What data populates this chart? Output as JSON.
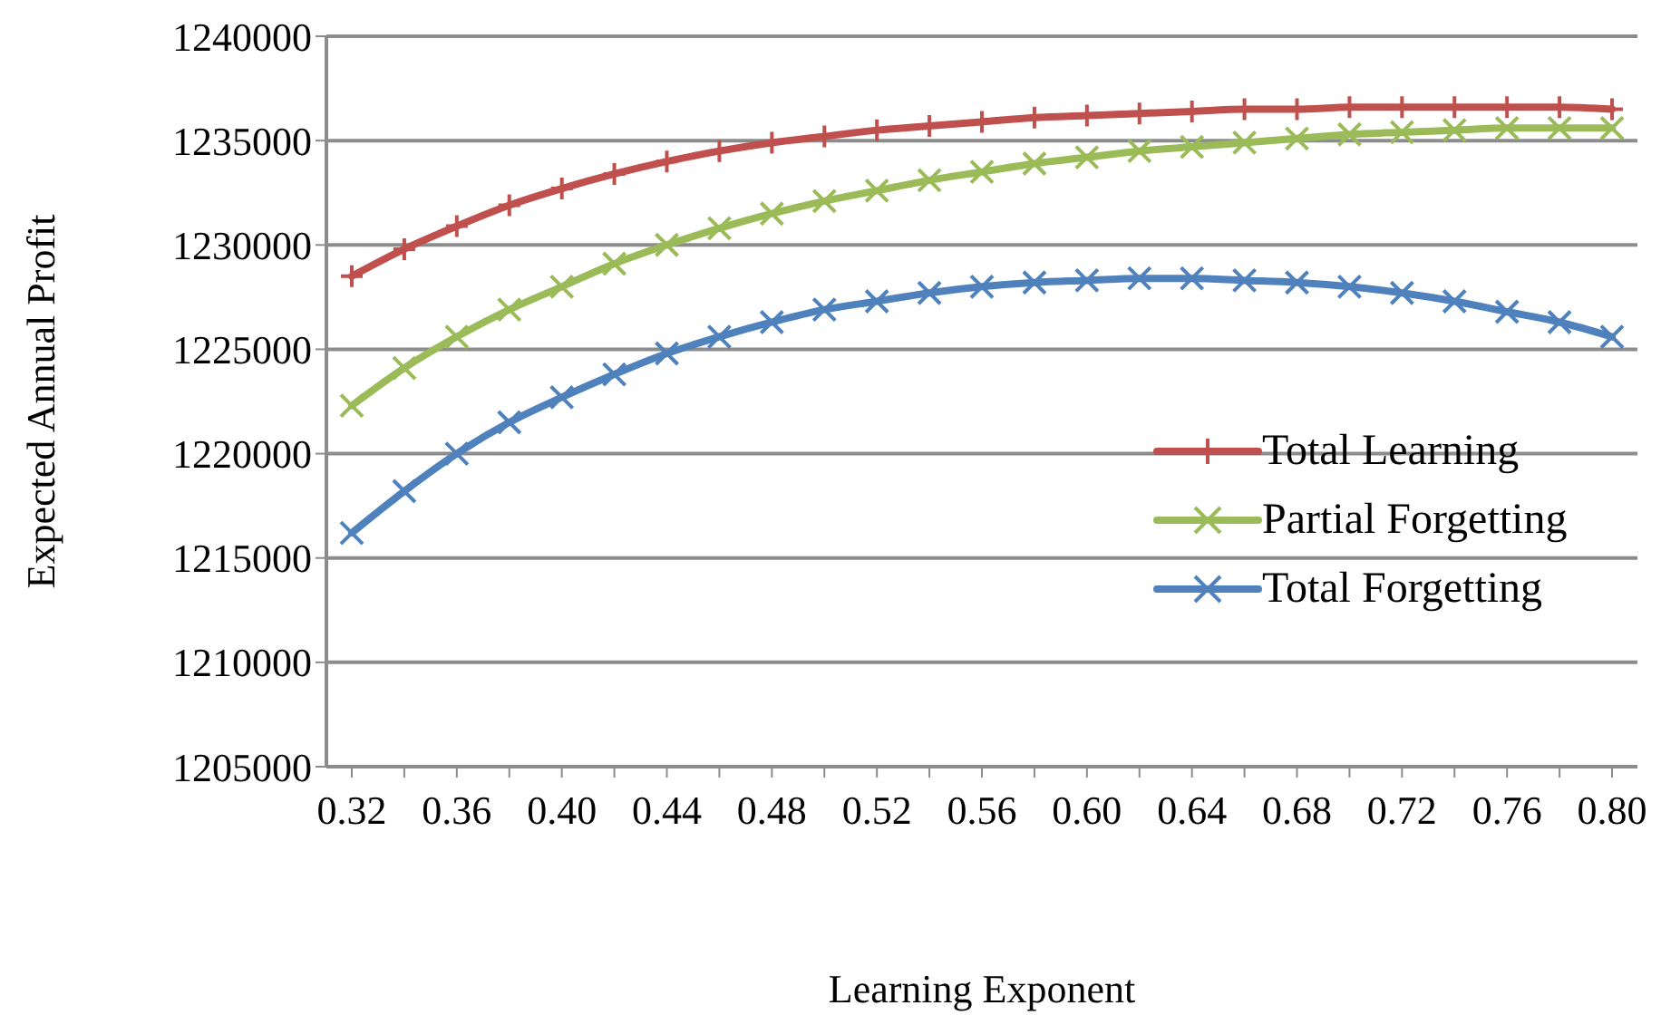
{
  "chart_data": {
    "type": "line",
    "xlabel": "Learning Exponent",
    "ylabel": "Expected Annual Profit",
    "categories": [
      "0.32",
      null,
      "0.36",
      null,
      "0.40",
      null,
      "0.44",
      null,
      "0.48",
      null,
      "0.52",
      null,
      "0.56",
      null,
      "0.60",
      null,
      "0.64",
      null,
      "0.68",
      null,
      "0.72",
      null,
      "0.76",
      null,
      "0.80"
    ],
    "series": [
      {
        "name": "Total Learning",
        "color": "#c0504d",
        "marker": "plus",
        "values": [
          1228500,
          1229800,
          1230900,
          1231900,
          1232700,
          1233400,
          1234000,
          1234500,
          1234900,
          1235200,
          1235500,
          1235700,
          1235900,
          1236100,
          1236200,
          1236300,
          1236400,
          1236500,
          1236500,
          1236600,
          1236600,
          1236600,
          1236600,
          1236600,
          1236500
        ]
      },
      {
        "name": "Partial Forgetting",
        "color": "#9bbb59",
        "marker": "cross",
        "values": [
          1222300,
          1224100,
          1225600,
          1226900,
          1228000,
          1229100,
          1230000,
          1230800,
          1231500,
          1232100,
          1232600,
          1233100,
          1233500,
          1233900,
          1234200,
          1234500,
          1234700,
          1234900,
          1235100,
          1235300,
          1235400,
          1235500,
          1235600,
          1235600,
          1235600
        ]
      },
      {
        "name": "Total Forgetting",
        "color": "#4f81bd",
        "marker": "cross",
        "values": [
          1216200,
          1218200,
          1220000,
          1221500,
          1222700,
          1223800,
          1224800,
          1225600,
          1226300,
          1226900,
          1227300,
          1227700,
          1228000,
          1228200,
          1228300,
          1228400,
          1228400,
          1228300,
          1228200,
          1228000,
          1227700,
          1227300,
          1226800,
          1226300,
          1225600
        ]
      }
    ],
    "ylim": [
      1205000,
      1240000
    ],
    "yticks": [
      1205000,
      1210000,
      1215000,
      1220000,
      1225000,
      1230000,
      1235000,
      1240000
    ],
    "grid": "y",
    "legend": "right",
    "line_style": "solid"
  }
}
